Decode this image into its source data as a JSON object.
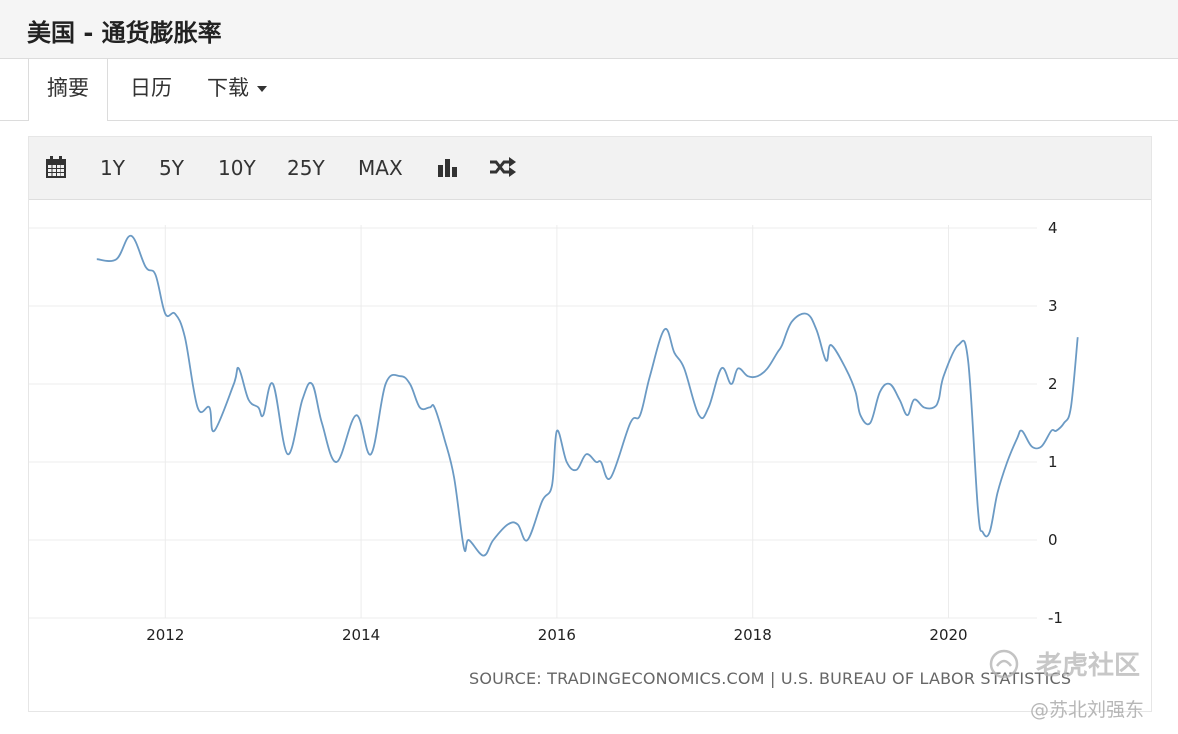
{
  "header": {
    "title": "美国 - 通货膨胀率"
  },
  "tabs": [
    {
      "label": "摘要"
    },
    {
      "label": "日历"
    },
    {
      "label": "下载"
    }
  ],
  "toolbar": {
    "calendar_icon": "calendar-icon",
    "ranges": [
      "1Y",
      "5Y",
      "10Y",
      "25Y",
      "MAX"
    ],
    "chart_type_icon": "bar-chart-icon",
    "compare_icon": "shuffle-icon"
  },
  "chart_data": {
    "type": "line",
    "color": "#6b9ac4",
    "ylim": [
      -1,
      4
    ],
    "y_ticks": [
      "4",
      "3",
      "2",
      "1",
      "0",
      "-1"
    ],
    "y_axis_side": "right",
    "x_ticks": [
      "2012",
      "2014",
      "2016",
      "2018",
      "2020"
    ],
    "grid": true,
    "series": [
      {
        "points": [
          [
            2011.3,
            3.6
          ],
          [
            2011.5,
            3.6
          ],
          [
            2011.65,
            3.9
          ],
          [
            2011.8,
            3.5
          ],
          [
            2011.9,
            3.4
          ],
          [
            2012.0,
            2.9
          ],
          [
            2012.1,
            2.9
          ],
          [
            2012.2,
            2.6
          ],
          [
            2012.33,
            1.7
          ],
          [
            2012.45,
            1.7
          ],
          [
            2012.5,
            1.4
          ],
          [
            2012.7,
            2.0
          ],
          [
            2012.75,
            2.2
          ],
          [
            2012.85,
            1.8
          ],
          [
            2012.95,
            1.7
          ],
          [
            2013.0,
            1.6
          ],
          [
            2013.1,
            2.0
          ],
          [
            2013.25,
            1.1
          ],
          [
            2013.4,
            1.8
          ],
          [
            2013.5,
            2.0
          ],
          [
            2013.6,
            1.5
          ],
          [
            2013.75,
            1.0
          ],
          [
            2013.95,
            1.6
          ],
          [
            2014.1,
            1.1
          ],
          [
            2014.25,
            2.0
          ],
          [
            2014.4,
            2.1
          ],
          [
            2014.5,
            2.0
          ],
          [
            2014.6,
            1.7
          ],
          [
            2014.7,
            1.7
          ],
          [
            2014.75,
            1.7
          ],
          [
            2014.85,
            1.3
          ],
          [
            2014.95,
            0.8
          ],
          [
            2015.05,
            -0.1
          ],
          [
            2015.1,
            0.0
          ],
          [
            2015.25,
            -0.2
          ],
          [
            2015.35,
            0.0
          ],
          [
            2015.5,
            0.2
          ],
          [
            2015.6,
            0.2
          ],
          [
            2015.7,
            0.0
          ],
          [
            2015.85,
            0.5
          ],
          [
            2015.95,
            0.7
          ],
          [
            2016.0,
            1.4
          ],
          [
            2016.1,
            1.0
          ],
          [
            2016.2,
            0.9
          ],
          [
            2016.3,
            1.1
          ],
          [
            2016.4,
            1.0
          ],
          [
            2016.45,
            1.0
          ],
          [
            2016.55,
            0.8
          ],
          [
            2016.75,
            1.5
          ],
          [
            2016.85,
            1.6
          ],
          [
            2016.95,
            2.1
          ],
          [
            2017.1,
            2.7
          ],
          [
            2017.2,
            2.4
          ],
          [
            2017.3,
            2.2
          ],
          [
            2017.45,
            1.6
          ],
          [
            2017.55,
            1.7
          ],
          [
            2017.68,
            2.2
          ],
          [
            2017.78,
            2.0
          ],
          [
            2017.85,
            2.2
          ],
          [
            2017.95,
            2.1
          ],
          [
            2018.05,
            2.1
          ],
          [
            2018.15,
            2.2
          ],
          [
            2018.25,
            2.4
          ],
          [
            2018.3,
            2.5
          ],
          [
            2018.4,
            2.8
          ],
          [
            2018.55,
            2.9
          ],
          [
            2018.65,
            2.7
          ],
          [
            2018.75,
            2.3
          ],
          [
            2018.8,
            2.5
          ],
          [
            2018.95,
            2.2
          ],
          [
            2019.05,
            1.9
          ],
          [
            2019.1,
            1.6
          ],
          [
            2019.2,
            1.5
          ],
          [
            2019.3,
            1.9
          ],
          [
            2019.4,
            2.0
          ],
          [
            2019.5,
            1.8
          ],
          [
            2019.58,
            1.6
          ],
          [
            2019.65,
            1.8
          ],
          [
            2019.75,
            1.7
          ],
          [
            2019.85,
            1.7
          ],
          [
            2019.9,
            1.8
          ],
          [
            2019.95,
            2.1
          ],
          [
            2020.1,
            2.5
          ],
          [
            2020.2,
            2.3
          ],
          [
            2020.3,
            0.4
          ],
          [
            2020.35,
            0.1
          ],
          [
            2020.42,
            0.1
          ],
          [
            2020.5,
            0.6
          ],
          [
            2020.6,
            1.0
          ],
          [
            2020.7,
            1.3
          ],
          [
            2020.75,
            1.4
          ],
          [
            2020.85,
            1.2
          ],
          [
            2020.95,
            1.2
          ],
          [
            2021.05,
            1.4
          ],
          [
            2021.1,
            1.4
          ],
          [
            2021.18,
            1.5
          ],
          [
            2021.25,
            1.7
          ],
          [
            2021.32,
            2.6
          ]
        ]
      }
    ],
    "source": "SOURCE: TRADINGECONOMICS.COM | U.S. BUREAU OF LABOR STATISTICS"
  },
  "watermark": {
    "brand": "老虎社区",
    "author": "@苏北刘强东"
  }
}
